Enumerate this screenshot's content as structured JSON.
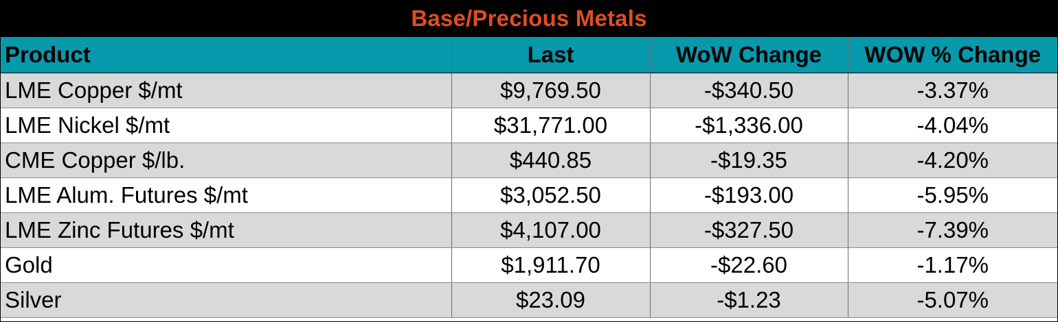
{
  "title": "Base/Precious Metals",
  "colors": {
    "title_background": "#000000",
    "title_text": "#e04e21",
    "header_background": "#0799ac",
    "row_band": "#d9d9d9"
  },
  "columns": {
    "product": "Product",
    "last": "Last",
    "wow_change": "WoW Change",
    "wow_pct_change": "WOW % Change"
  },
  "rows": [
    {
      "product": "LME Copper $/mt",
      "last": "$9,769.50",
      "wow_change": "-$340.50",
      "wow_pct_change": "-3.37%"
    },
    {
      "product": "LME Nickel $/mt",
      "last": "$31,771.00",
      "wow_change": "-$1,336.00",
      "wow_pct_change": "-4.04%"
    },
    {
      "product": "CME Copper $/lb.",
      "last": "$440.85",
      "wow_change": "-$19.35",
      "wow_pct_change": "-4.20%"
    },
    {
      "product": "LME Alum. Futures $/mt",
      "last": "$3,052.50",
      "wow_change": "-$193.00",
      "wow_pct_change": "-5.95%"
    },
    {
      "product": "LME Zinc Futures $/mt",
      "last": "$4,107.00",
      "wow_change": "-$327.50",
      "wow_pct_change": "-7.39%"
    },
    {
      "product": "Gold",
      "last": "$1,911.70",
      "wow_change": "-$22.60",
      "wow_pct_change": "-1.17%"
    },
    {
      "product": "Silver",
      "last": "$23.09",
      "wow_change": "-$1.23",
      "wow_pct_change": "-5.07%"
    }
  ]
}
